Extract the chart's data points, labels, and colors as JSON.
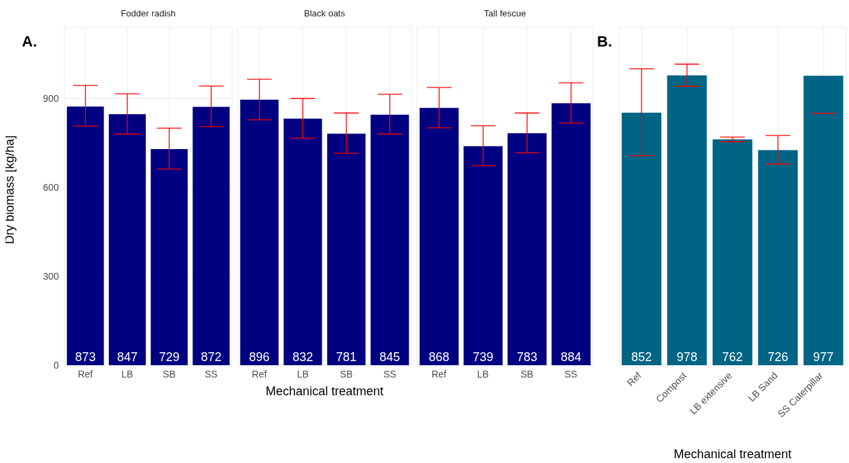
{
  "chart_data": [
    {
      "type": "bar",
      "title": "Fodder radish",
      "ylabel": "Dry biomass [kg/ha]",
      "annotations": [
        "A."
      ],
      "categories": [
        "Ref",
        "LB",
        "SB",
        "SS"
      ],
      "color": "#000080",
      "values": [
        873,
        847,
        729,
        872
      ],
      "errors": [
        [
          807,
          944
        ],
        [
          780,
          916
        ],
        [
          662,
          800
        ],
        [
          805,
          942
        ]
      ],
      "data_labels": true,
      "ylim": [
        0,
        1140
      ],
      "yticks": [
        0,
        300,
        600,
        900
      ],
      "grid": true
    },
    {
      "type": "bar",
      "title": "Black oats",
      "xlabel": "Mechanical treatment",
      "categories": [
        "Ref",
        "LB",
        "SB",
        "SS"
      ],
      "color": "#000080",
      "values": [
        896,
        832,
        781,
        845
      ],
      "errors": [
        [
          828,
          965
        ],
        [
          766,
          900
        ],
        [
          715,
          851
        ],
        [
          780,
          914
        ]
      ],
      "data_labels": true,
      "ylim": [
        0,
        1140
      ],
      "yticks": [
        0,
        300,
        600,
        900
      ],
      "grid": true,
      "tick_labels": "x"
    },
    {
      "type": "bar",
      "title": "Tall fescue",
      "categories": [
        "Ref",
        "LB",
        "SB",
        "SS"
      ],
      "color": "#000080",
      "values": [
        868,
        739,
        783,
        884
      ],
      "errors": [
        [
          801,
          937
        ],
        [
          673,
          808
        ],
        [
          717,
          851
        ],
        [
          817,
          953
        ]
      ],
      "data_labels": true,
      "ylim": [
        0,
        1140
      ],
      "yticks": [
        0,
        300,
        600,
        900
      ],
      "grid": true,
      "tick_labels": "x"
    },
    {
      "type": "bar",
      "xlabel": "Mechanical treatment",
      "annotations": [
        "B."
      ],
      "categories": [
        "Ref",
        "Compost",
        "LB extensive",
        "LB Sand",
        "SS Caterpillar"
      ],
      "color": "#006485",
      "values": [
        852,
        978,
        762,
        726,
        977
      ],
      "errors": [
        [
          707,
          1000
        ],
        [
          941,
          1016
        ],
        [
          754,
          770
        ],
        [
          679,
          775
        ],
        [
          850,
          850
        ]
      ],
      "data_labels": true,
      "ylim": [
        0,
        1140
      ],
      "yticks": [
        0,
        300,
        600,
        900
      ],
      "grid": true,
      "tick_labels": "x"
    }
  ]
}
